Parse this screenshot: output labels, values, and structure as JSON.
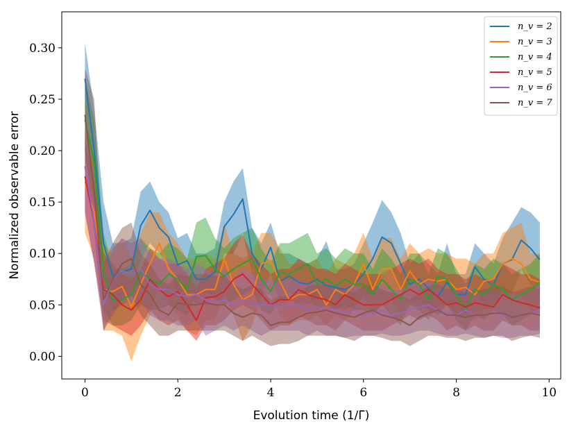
{
  "chart_data": {
    "type": "line",
    "xlabel": "Evolution time (1/Γ̄)",
    "ylabel": "Normalized observable error",
    "xlim": [
      -0.5,
      10.25
    ],
    "ylim": [
      -0.022,
      0.335
    ],
    "xticks": [
      0,
      2,
      4,
      6,
      8,
      10
    ],
    "yticks": [
      0.0,
      0.05,
      0.1,
      0.15,
      0.2,
      0.25,
      0.3
    ],
    "xtick_labels": [
      "0",
      "2",
      "4",
      "6",
      "8",
      "10"
    ],
    "ytick_labels": [
      "0.00",
      "0.05",
      "0.10",
      "0.15",
      "0.20",
      "0.25",
      "0.30"
    ],
    "grid": false,
    "legend_position": "top-right",
    "x": [
      0.0,
      0.2,
      0.4,
      0.6,
      0.8,
      1.0,
      1.2,
      1.4,
      1.6,
      1.8,
      2.0,
      2.2,
      2.4,
      2.6,
      2.8,
      3.0,
      3.2,
      3.4,
      3.6,
      3.8,
      4.0,
      4.2,
      4.4,
      4.6,
      4.8,
      5.0,
      5.2,
      5.4,
      5.6,
      5.8,
      6.0,
      6.2,
      6.4,
      6.6,
      6.8,
      7.0,
      7.2,
      7.4,
      7.6,
      7.8,
      8.0,
      8.2,
      8.4,
      8.6,
      8.8,
      9.0,
      9.2,
      9.4,
      9.6,
      9.8
    ],
    "series": [
      {
        "name": "n_v = 2",
        "color": "#1f77b4",
        "values": [
          0.27,
          0.2,
          0.11,
          0.078,
          0.082,
          0.085,
          0.127,
          0.142,
          0.125,
          0.116,
          0.089,
          0.093,
          0.075,
          0.075,
          0.082,
          0.126,
          0.138,
          0.153,
          0.1,
          0.085,
          0.106,
          0.073,
          0.078,
          0.072,
          0.07,
          0.075,
          0.069,
          0.067,
          0.065,
          0.07,
          0.08,
          0.095,
          0.116,
          0.11,
          0.09,
          0.07,
          0.075,
          0.066,
          0.058,
          0.072,
          0.06,
          0.06,
          0.087,
          0.075,
          0.069,
          0.09,
          0.094,
          0.113,
          0.105,
          0.094
        ],
        "lower": [
          0.24,
          0.16,
          0.07,
          0.045,
          0.05,
          0.055,
          0.095,
          0.11,
          0.1,
          0.09,
          0.06,
          0.065,
          0.05,
          0.05,
          0.06,
          0.1,
          0.1,
          0.12,
          0.08,
          0.06,
          0.08,
          0.05,
          0.055,
          0.05,
          0.05,
          0.055,
          0.05,
          0.048,
          0.045,
          0.05,
          0.06,
          0.06,
          0.08,
          0.085,
          0.065,
          0.05,
          0.055,
          0.045,
          0.04,
          0.05,
          0.04,
          0.04,
          0.065,
          0.05,
          0.05,
          0.065,
          0.06,
          0.085,
          0.07,
          0.06
        ],
        "upper": [
          0.305,
          0.24,
          0.15,
          0.11,
          0.11,
          0.115,
          0.16,
          0.17,
          0.15,
          0.14,
          0.115,
          0.12,
          0.1,
          0.1,
          0.105,
          0.15,
          0.17,
          0.183,
          0.125,
          0.11,
          0.13,
          0.1,
          0.1,
          0.095,
          0.09,
          0.095,
          0.112,
          0.085,
          0.085,
          0.09,
          0.11,
          0.13,
          0.152,
          0.14,
          0.12,
          0.09,
          0.1,
          0.09,
          0.08,
          0.11,
          0.08,
          0.08,
          0.11,
          0.1,
          0.09,
          0.115,
          0.13,
          0.145,
          0.14,
          0.13
        ]
      },
      {
        "name": "n_v = 3",
        "color": "#ff7f0e",
        "values": [
          0.17,
          0.14,
          0.065,
          0.063,
          0.068,
          0.048,
          0.07,
          0.09,
          0.11,
          0.085,
          0.075,
          0.06,
          0.06,
          0.065,
          0.065,
          0.095,
          0.07,
          0.055,
          0.06,
          0.09,
          0.093,
          0.073,
          0.055,
          0.06,
          0.06,
          0.065,
          0.05,
          0.065,
          0.06,
          0.07,
          0.09,
          0.065,
          0.085,
          0.085,
          0.065,
          0.083,
          0.07,
          0.075,
          0.073,
          0.075,
          0.065,
          0.067,
          0.06,
          0.073,
          0.075,
          0.09,
          0.095,
          0.09,
          0.075,
          0.072
        ],
        "lower": [
          0.12,
          0.095,
          0.025,
          0.025,
          0.02,
          -0.005,
          0.02,
          0.04,
          0.07,
          0.05,
          0.04,
          0.025,
          0.02,
          0.035,
          0.035,
          0.06,
          0.04,
          0.015,
          0.03,
          0.06,
          0.06,
          0.04,
          0.03,
          0.035,
          0.035,
          0.04,
          0.03,
          0.04,
          0.035,
          0.045,
          0.06,
          0.04,
          0.05,
          0.055,
          0.04,
          0.055,
          0.045,
          0.05,
          0.045,
          0.05,
          0.04,
          0.04,
          0.035,
          0.045,
          0.05,
          0.06,
          0.06,
          0.06,
          0.045,
          0.04
        ],
        "upper": [
          0.22,
          0.19,
          0.11,
          0.1,
          0.115,
          0.095,
          0.12,
          0.14,
          0.14,
          0.12,
          0.11,
          0.095,
          0.095,
          0.1,
          0.095,
          0.13,
          0.1,
          0.095,
          0.1,
          0.12,
          0.12,
          0.105,
          0.09,
          0.09,
          0.09,
          0.095,
          0.08,
          0.095,
          0.09,
          0.1,
          0.12,
          0.095,
          0.115,
          0.115,
          0.095,
          0.11,
          0.1,
          0.105,
          0.1,
          0.1,
          0.095,
          0.095,
          0.09,
          0.1,
          0.1,
          0.12,
          0.125,
          0.13,
          0.1,
          0.1
        ]
      },
      {
        "name": "n_v = 4",
        "color": "#2ca02c",
        "values": [
          0.23,
          0.19,
          0.08,
          0.055,
          0.055,
          0.06,
          0.082,
          0.075,
          0.07,
          0.08,
          0.075,
          0.065,
          0.097,
          0.098,
          0.085,
          0.078,
          0.085,
          0.09,
          0.095,
          0.075,
          0.063,
          0.082,
          0.08,
          0.085,
          0.09,
          0.07,
          0.075,
          0.068,
          0.075,
          0.07,
          0.07,
          0.06,
          0.075,
          0.065,
          0.055,
          0.075,
          0.07,
          0.055,
          0.078,
          0.075,
          0.06,
          0.045,
          0.065,
          0.06,
          0.07,
          0.065,
          0.055,
          0.06,
          0.065,
          0.072
        ],
        "lower": [
          0.19,
          0.15,
          0.045,
          0.03,
          0.03,
          0.035,
          0.05,
          0.045,
          0.045,
          0.05,
          0.045,
          0.04,
          0.06,
          0.065,
          0.055,
          0.05,
          0.055,
          0.06,
          0.065,
          0.045,
          0.04,
          0.055,
          0.055,
          0.06,
          0.06,
          0.045,
          0.05,
          0.045,
          0.05,
          0.045,
          0.045,
          0.04,
          0.05,
          0.04,
          0.03,
          0.05,
          0.045,
          0.035,
          0.05,
          0.05,
          0.035,
          0.025,
          0.04,
          0.035,
          0.045,
          0.04,
          0.03,
          0.035,
          0.04,
          0.045
        ],
        "upper": [
          0.27,
          0.23,
          0.12,
          0.085,
          0.085,
          0.09,
          0.115,
          0.105,
          0.1,
          0.11,
          0.105,
          0.095,
          0.13,
          0.135,
          0.115,
          0.105,
          0.115,
          0.12,
          0.125,
          0.105,
          0.09,
          0.11,
          0.11,
          0.115,
          0.12,
          0.1,
          0.105,
          0.095,
          0.105,
          0.1,
          0.1,
          0.085,
          0.105,
          0.095,
          0.08,
          0.1,
          0.1,
          0.08,
          0.105,
          0.1,
          0.085,
          0.07,
          0.09,
          0.085,
          0.095,
          0.09,
          0.08,
          0.085,
          0.09,
          0.1
        ]
      },
      {
        "name": "n_v = 5",
        "color": "#d62728",
        "values": [
          0.175,
          0.13,
          0.065,
          0.06,
          0.05,
          0.045,
          0.055,
          0.075,
          0.065,
          0.058,
          0.063,
          0.05,
          0.035,
          0.057,
          0.058,
          0.063,
          0.075,
          0.08,
          0.07,
          0.06,
          0.05,
          0.055,
          0.055,
          0.065,
          0.06,
          0.057,
          0.055,
          0.05,
          0.06,
          0.055,
          0.05,
          0.05,
          0.05,
          0.055,
          0.06,
          0.065,
          0.06,
          0.065,
          0.058,
          0.05,
          0.052,
          0.048,
          0.052,
          0.05,
          0.048,
          0.06,
          0.055,
          0.052,
          0.05,
          0.047
        ],
        "lower": [
          0.14,
          0.09,
          0.035,
          0.03,
          0.025,
          0.02,
          0.03,
          0.045,
          0.035,
          0.03,
          0.035,
          0.025,
          0.015,
          0.03,
          0.03,
          0.035,
          0.045,
          0.05,
          0.045,
          0.035,
          0.025,
          0.03,
          0.03,
          0.04,
          0.035,
          0.03,
          0.03,
          0.025,
          0.035,
          0.03,
          0.025,
          0.025,
          0.025,
          0.03,
          0.035,
          0.04,
          0.035,
          0.04,
          0.035,
          0.025,
          0.03,
          0.025,
          0.03,
          0.025,
          0.025,
          0.035,
          0.03,
          0.03,
          0.025,
          0.025
        ],
        "upper": [
          0.21,
          0.17,
          0.1,
          0.09,
          0.08,
          0.075,
          0.085,
          0.105,
          0.095,
          0.09,
          0.09,
          0.08,
          0.065,
          0.085,
          0.09,
          0.095,
          0.11,
          0.118,
          0.1,
          0.09,
          0.08,
          0.085,
          0.085,
          0.095,
          0.09,
          0.085,
          0.085,
          0.08,
          0.09,
          0.085,
          0.08,
          0.08,
          0.08,
          0.085,
          0.09,
          0.095,
          0.09,
          0.095,
          0.085,
          0.08,
          0.08,
          0.075,
          0.08,
          0.075,
          0.075,
          0.09,
          0.085,
          0.08,
          0.08,
          0.075
        ]
      },
      {
        "name": "n_v = 6",
        "color": "#9467bd",
        "values": [
          0.185,
          0.13,
          0.05,
          0.075,
          0.083,
          0.08,
          0.085,
          0.07,
          0.065,
          0.065,
          0.06,
          0.058,
          0.06,
          0.055,
          0.052,
          0.055,
          0.05,
          0.055,
          0.052,
          0.05,
          0.05,
          0.048,
          0.05,
          0.05,
          0.045,
          0.048,
          0.045,
          0.045,
          0.042,
          0.045,
          0.04,
          0.042,
          0.045,
          0.04,
          0.042,
          0.045,
          0.048,
          0.05,
          0.045,
          0.042,
          0.04,
          0.045,
          0.04,
          0.04,
          0.042,
          0.04,
          0.038,
          0.04,
          0.042,
          0.045
        ],
        "lower": [
          0.14,
          0.09,
          0.025,
          0.045,
          0.055,
          0.05,
          0.055,
          0.04,
          0.035,
          0.035,
          0.03,
          0.03,
          0.035,
          0.02,
          0.025,
          0.03,
          0.025,
          0.03,
          0.025,
          0.02,
          0.025,
          0.025,
          0.025,
          0.025,
          0.02,
          0.025,
          0.02,
          0.02,
          0.018,
          0.02,
          0.02,
          0.02,
          0.022,
          0.02,
          0.02,
          0.022,
          0.025,
          0.025,
          0.022,
          0.02,
          0.02,
          0.022,
          0.02,
          0.018,
          0.02,
          0.018,
          0.018,
          0.02,
          0.02,
          0.022
        ],
        "upper": [
          0.23,
          0.17,
          0.08,
          0.105,
          0.115,
          0.11,
          0.115,
          0.1,
          0.095,
          0.095,
          0.09,
          0.085,
          0.09,
          0.085,
          0.08,
          0.085,
          0.075,
          0.085,
          0.08,
          0.075,
          0.075,
          0.072,
          0.075,
          0.075,
          0.07,
          0.072,
          0.07,
          0.07,
          0.065,
          0.07,
          0.065,
          0.065,
          0.07,
          0.065,
          0.065,
          0.07,
          0.072,
          0.075,
          0.07,
          0.065,
          0.065,
          0.07,
          0.065,
          0.062,
          0.065,
          0.062,
          0.06,
          0.062,
          0.065,
          0.07
        ]
      },
      {
        "name": "n_v = 7",
        "color": "#8c564b",
        "values": [
          0.235,
          0.16,
          0.055,
          0.075,
          0.09,
          0.095,
          0.07,
          0.06,
          0.045,
          0.04,
          0.052,
          0.05,
          0.05,
          0.052,
          0.05,
          0.05,
          0.042,
          0.038,
          0.042,
          0.04,
          0.03,
          0.033,
          0.033,
          0.038,
          0.042,
          0.043,
          0.045,
          0.042,
          0.04,
          0.038,
          0.042,
          0.045,
          0.04,
          0.038,
          0.035,
          0.03,
          0.038,
          0.042,
          0.045,
          0.04,
          0.04,
          0.038,
          0.04,
          0.04,
          0.042,
          0.042,
          0.038,
          0.04,
          0.042,
          0.04
        ],
        "lower": [
          0.2,
          0.12,
          0.025,
          0.04,
          0.055,
          0.06,
          0.04,
          0.03,
          0.02,
          0.02,
          0.025,
          0.025,
          0.025,
          0.025,
          0.025,
          0.025,
          0.02,
          0.015,
          0.02,
          0.015,
          0.01,
          0.012,
          0.012,
          0.015,
          0.02,
          0.02,
          0.02,
          0.02,
          0.018,
          0.015,
          0.02,
          0.02,
          0.018,
          0.015,
          0.015,
          0.01,
          0.015,
          0.02,
          0.02,
          0.018,
          0.018,
          0.015,
          0.018,
          0.018,
          0.02,
          0.02,
          0.015,
          0.018,
          0.02,
          0.018
        ],
        "upper": [
          0.28,
          0.25,
          0.09,
          0.11,
          0.125,
          0.13,
          0.1,
          0.09,
          0.075,
          0.07,
          0.08,
          0.078,
          0.08,
          0.08,
          0.078,
          0.078,
          0.07,
          0.065,
          0.07,
          0.065,
          0.055,
          0.058,
          0.058,
          0.062,
          0.068,
          0.07,
          0.07,
          0.068,
          0.065,
          0.062,
          0.068,
          0.07,
          0.065,
          0.062,
          0.06,
          0.055,
          0.062,
          0.068,
          0.07,
          0.065,
          0.065,
          0.062,
          0.065,
          0.065,
          0.068,
          0.068,
          0.062,
          0.065,
          0.068,
          0.065
        ]
      }
    ]
  }
}
